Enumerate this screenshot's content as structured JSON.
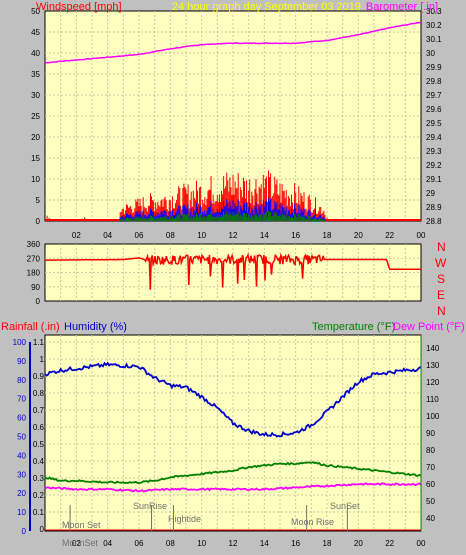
{
  "header": {
    "windspeed_label": "Windspeed [mph]",
    "title": "24 hour graph day   September 03 2019",
    "barometer_label": "Barometer [.in]"
  },
  "bottom_header": {
    "rainfall_label": "Rainfall (.in)",
    "humidity_label": "Humidity (%)",
    "temperature_label": "Temperature (°F)",
    "dewpoint_label": "Dew Point (°F)"
  },
  "colors": {
    "background": "#c0c0c0",
    "plot_bg": "#ffffc0",
    "wind": "#ff0000",
    "gust_mid": "#0000ff",
    "gust_low": "#008000",
    "barometer": "#ff00ff",
    "humidity": "#0000cc",
    "temperature": "#008000",
    "dewpoint": "#ff00ff",
    "direction": "#ff0000",
    "rainfall": "#ff0000"
  },
  "x_ticks": [
    "02",
    "04",
    "06",
    "08",
    "10",
    "12",
    "14",
    "16",
    "18",
    "20",
    "22",
    "00"
  ],
  "compass_labels": [
    "N",
    "W",
    "S",
    "E",
    "N"
  ],
  "annotations": {
    "moon_set_top": "Moon Set",
    "moon_set_bottom": "MoonSet",
    "sunrise": "SunRise",
    "hightide": "Hightide",
    "moon_rise": "Moon Rise",
    "sunset": "SunSet"
  },
  "chart_data": [
    {
      "type": "line",
      "title": "24 hour graph day   September 03 2019",
      "xlabel": "",
      "ylabel": "Windspeed [mph]",
      "y2label": "Barometer [.in]",
      "x_ticks": [
        "02",
        "04",
        "06",
        "08",
        "10",
        "12",
        "14",
        "16",
        "18",
        "20",
        "22",
        "00"
      ],
      "ylim": [
        0,
        50
      ],
      "y_ticks": [
        0,
        5,
        10,
        15,
        20,
        25,
        30,
        35,
        40,
        45,
        50
      ],
      "y2lim": [
        29.8,
        30.3
      ],
      "y2_ticks": [
        "28.8",
        "28.9",
        "29",
        "29.1",
        "29.2",
        "29.3",
        "29.4",
        "29.5",
        "29.6",
        "29.7",
        "29.8",
        "29.9",
        "30",
        "30.1",
        "30.2",
        "30.3"
      ],
      "y2_tick_values": [
        28.8,
        28.9,
        29.0,
        29.1,
        29.2,
        29.3,
        29.4,
        29.5,
        29.6,
        29.7,
        29.8,
        29.9,
        30.0,
        30.1,
        30.2,
        30.3
      ],
      "grid": true,
      "series": [
        {
          "name": "Barometer",
          "x": [
            0,
            2,
            4,
            6,
            8,
            10,
            12,
            14,
            16,
            18,
            20,
            22,
            24
          ],
          "values": [
            29.93,
            29.95,
            29.97,
            29.99,
            30.03,
            30.06,
            30.07,
            30.07,
            30.07,
            30.09,
            30.13,
            30.18,
            30.22
          ]
        },
        {
          "name": "Windspeed",
          "x": [
            0,
            4.8,
            6.5,
            8,
            10,
            11,
            12,
            13,
            14,
            15,
            16,
            17,
            17.8,
            24
          ],
          "values": [
            0,
            3,
            5,
            6,
            8,
            9,
            10,
            9,
            10,
            8,
            7,
            5,
            3,
            0
          ]
        }
      ]
    },
    {
      "type": "line",
      "ylabel": "Wind Direction",
      "ylim": [
        0,
        360
      ],
      "y_ticks": [
        0,
        90,
        180,
        270,
        360
      ],
      "grid": true,
      "series": [
        {
          "name": "Direction",
          "x": [
            0,
            5,
            6,
            6.5,
            8,
            10,
            12,
            14,
            16,
            17.5,
            18,
            21.8,
            22,
            24
          ],
          "values": [
            258,
            262,
            272,
            258,
            260,
            262,
            262,
            265,
            260,
            262,
            262,
            262,
            200,
            200
          ]
        }
      ]
    },
    {
      "type": "line",
      "ylabel": "Rainfall (.in)",
      "y_rain_lim": [
        0,
        1.1
      ],
      "y_rain_ticks": [
        0,
        0.1,
        0.2,
        0.3,
        0.4,
        0.5,
        0.6,
        0.7,
        0.8,
        0.9,
        1,
        1.1
      ],
      "y_hum_lim": [
        0,
        100
      ],
      "y_hum_ticks": [
        0,
        10,
        20,
        30,
        40,
        50,
        60,
        70,
        80,
        90,
        100
      ],
      "y_temp_lim": [
        32.5,
        147.5
      ],
      "y_temp_ticks": [
        40,
        50,
        60,
        70,
        80,
        90,
        100,
        110,
        120,
        130,
        140
      ],
      "grid": true,
      "series": [
        {
          "name": "Humidity",
          "x": [
            0,
            1,
            2,
            4,
            6,
            7,
            8,
            9,
            10,
            11,
            12,
            13,
            14,
            15,
            16,
            17,
            18,
            19,
            20,
            21,
            22,
            23,
            24
          ],
          "values": [
            83,
            85,
            86,
            88,
            87,
            81,
            77,
            76,
            71,
            65,
            57,
            53,
            51,
            51,
            52,
            56,
            63,
            71,
            79,
            83,
            84,
            85,
            86
          ]
        },
        {
          "name": "Temperature",
          "x": [
            0,
            1,
            2,
            4,
            6,
            7,
            8,
            9,
            10,
            11,
            12,
            13,
            14,
            15,
            16,
            17,
            18,
            19,
            20,
            21,
            22,
            23,
            24
          ],
          "values": [
            64,
            62,
            62,
            61,
            61,
            62,
            64,
            65,
            66,
            67,
            68,
            70,
            71,
            72,
            72,
            73,
            71,
            70,
            69,
            68,
            67,
            66,
            65
          ]
        },
        {
          "name": "Dew Point",
          "x": [
            0,
            2,
            4,
            6,
            8,
            10,
            12,
            14,
            16,
            18,
            20,
            22,
            24
          ],
          "values": [
            58,
            57,
            57,
            56,
            57,
            57,
            57,
            57,
            58,
            59,
            60,
            60,
            60
          ]
        },
        {
          "name": "Rainfall",
          "x": [
            0,
            24
          ],
          "values": [
            0,
            0
          ]
        }
      ]
    }
  ]
}
